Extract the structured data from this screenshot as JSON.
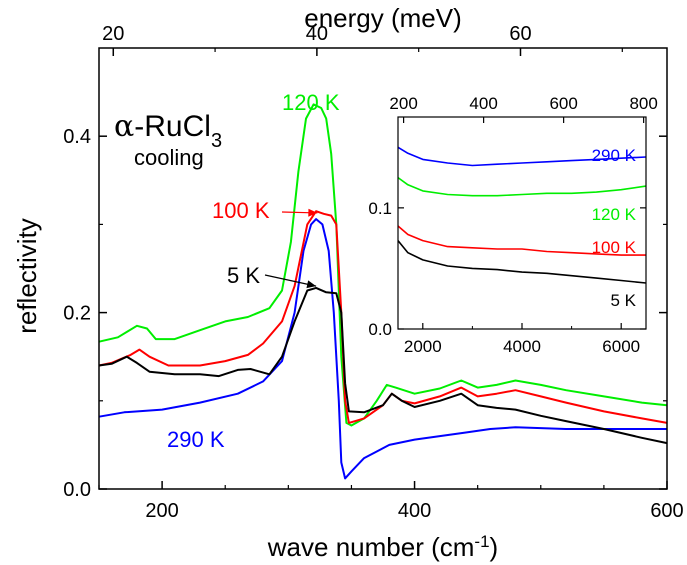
{
  "chart_data": [
    {
      "type": "line",
      "title": "",
      "annotations": [
        "α-RuCl3",
        "cooling"
      ],
      "x_axis": {
        "label": "wave number (cm-1)",
        "range": [
          150,
          600
        ],
        "ticks": [
          200,
          400,
          600
        ]
      },
      "top_axis": {
        "label": "energy (meV)",
        "ticks": [
          20,
          40,
          60
        ]
      },
      "y_axis": {
        "label": "reflectivity",
        "range": [
          0,
          0.5
        ],
        "ticks": [
          0.0,
          0.2,
          0.4
        ],
        "tick_labels": [
          "0.0",
          "0.2",
          "0.4"
        ]
      },
      "grid": false,
      "series": [
        {
          "name": "290 K",
          "color": "#0000ff",
          "points": [
            [
              150,
              0.082
            ],
            [
              170,
              0.087
            ],
            [
              200,
              0.09
            ],
            [
              230,
              0.098
            ],
            [
              260,
              0.108
            ],
            [
              280,
              0.122
            ],
            [
              295,
              0.145
            ],
            [
              305,
              0.2
            ],
            [
              312,
              0.27
            ],
            [
              318,
              0.3
            ],
            [
              322,
              0.306
            ],
            [
              327,
              0.3
            ],
            [
              332,
              0.27
            ],
            [
              336,
              0.2
            ],
            [
              340,
              0.1
            ],
            [
              342,
              0.03
            ],
            [
              345,
              0.012
            ],
            [
              350,
              0.02
            ],
            [
              360,
              0.035
            ],
            [
              380,
              0.05
            ],
            [
              400,
              0.056
            ],
            [
              420,
              0.06
            ],
            [
              440,
              0.064
            ],
            [
              460,
              0.068
            ],
            [
              480,
              0.07
            ],
            [
              500,
              0.069
            ],
            [
              520,
              0.068
            ],
            [
              550,
              0.068
            ],
            [
              580,
              0.068
            ],
            [
              600,
              0.068
            ]
          ]
        },
        {
          "name": "120 K",
          "color": "#00ee00",
          "points": [
            [
              150,
              0.167
            ],
            [
              165,
              0.172
            ],
            [
              180,
              0.185
            ],
            [
              188,
              0.182
            ],
            [
              195,
              0.17
            ],
            [
              210,
              0.17
            ],
            [
              230,
              0.18
            ],
            [
              250,
              0.19
            ],
            [
              268,
              0.195
            ],
            [
              285,
              0.205
            ],
            [
              295,
              0.225
            ],
            [
              302,
              0.28
            ],
            [
              308,
              0.36
            ],
            [
              314,
              0.42
            ],
            [
              320,
              0.436
            ],
            [
              326,
              0.432
            ],
            [
              330,
              0.42
            ],
            [
              334,
              0.38
            ],
            [
              338,
              0.3
            ],
            [
              342,
              0.15
            ],
            [
              346,
              0.075
            ],
            [
              350,
              0.072
            ],
            [
              360,
              0.08
            ],
            [
              370,
              0.1
            ],
            [
              378,
              0.118
            ],
            [
              385,
              0.115
            ],
            [
              400,
              0.108
            ],
            [
              420,
              0.114
            ],
            [
              437,
              0.123
            ],
            [
              450,
              0.115
            ],
            [
              465,
              0.118
            ],
            [
              480,
              0.123
            ],
            [
              500,
              0.118
            ],
            [
              520,
              0.112
            ],
            [
              550,
              0.105
            ],
            [
              580,
              0.098
            ],
            [
              600,
              0.095
            ]
          ]
        },
        {
          "name": "100 K",
          "color": "#ff0000",
          "points": [
            [
              150,
              0.14
            ],
            [
              160,
              0.143
            ],
            [
              175,
              0.152
            ],
            [
              182,
              0.158
            ],
            [
              190,
              0.15
            ],
            [
              205,
              0.14
            ],
            [
              230,
              0.14
            ],
            [
              250,
              0.145
            ],
            [
              268,
              0.152
            ],
            [
              280,
              0.165
            ],
            [
              295,
              0.19
            ],
            [
              305,
              0.23
            ],
            [
              315,
              0.3
            ],
            [
              322,
              0.315
            ],
            [
              328,
              0.312
            ],
            [
              334,
              0.31
            ],
            [
              338,
              0.3
            ],
            [
              342,
              0.2
            ],
            [
              345,
              0.1
            ],
            [
              348,
              0.075
            ],
            [
              360,
              0.08
            ],
            [
              375,
              0.095
            ],
            [
              382,
              0.108
            ],
            [
              390,
              0.1
            ],
            [
              400,
              0.097
            ],
            [
              420,
              0.105
            ],
            [
              437,
              0.115
            ],
            [
              450,
              0.105
            ],
            [
              465,
              0.108
            ],
            [
              480,
              0.112
            ],
            [
              500,
              0.105
            ],
            [
              520,
              0.098
            ],
            [
              550,
              0.088
            ],
            [
              580,
              0.08
            ],
            [
              600,
              0.075
            ]
          ]
        },
        {
          "name": "5 K",
          "color": "#000000",
          "points": [
            [
              150,
              0.14
            ],
            [
              160,
              0.142
            ],
            [
              172,
              0.15
            ],
            [
              180,
              0.143
            ],
            [
              190,
              0.133
            ],
            [
              210,
              0.13
            ],
            [
              230,
              0.13
            ],
            [
              245,
              0.128
            ],
            [
              260,
              0.135
            ],
            [
              270,
              0.136
            ],
            [
              285,
              0.13
            ],
            [
              295,
              0.15
            ],
            [
              305,
              0.19
            ],
            [
              315,
              0.225
            ],
            [
              322,
              0.228
            ],
            [
              330,
              0.223
            ],
            [
              338,
              0.222
            ],
            [
              342,
              0.2
            ],
            [
              345,
              0.12
            ],
            [
              348,
              0.088
            ],
            [
              360,
              0.087
            ],
            [
              375,
              0.095
            ],
            [
              382,
              0.108
            ],
            [
              390,
              0.1
            ],
            [
              400,
              0.093
            ],
            [
              420,
              0.1
            ],
            [
              437,
              0.108
            ],
            [
              450,
              0.095
            ],
            [
              465,
              0.092
            ],
            [
              480,
              0.09
            ],
            [
              500,
              0.083
            ],
            [
              520,
              0.077
            ],
            [
              550,
              0.068
            ],
            [
              580,
              0.058
            ],
            [
              600,
              0.052
            ]
          ]
        }
      ]
    },
    {
      "type": "line",
      "name": "inset",
      "x_axis": {
        "range": [
          1500,
          6500
        ],
        "ticks": [
          2000,
          4000,
          6000
        ]
      },
      "top_axis": {
        "ticks": [
          200,
          400,
          600,
          800
        ]
      },
      "y_axis": {
        "range": [
          0,
          0.175
        ],
        "ticks": [
          0.0,
          0.1
        ],
        "tick_labels": [
          "0.0",
          "0.1"
        ]
      },
      "series": [
        {
          "name": "290 K",
          "color": "#0000ff",
          "points": [
            [
              1500,
              0.15
            ],
            [
              1700,
              0.145
            ],
            [
              2000,
              0.14
            ],
            [
              2500,
              0.137
            ],
            [
              3000,
              0.135
            ],
            [
              3500,
              0.136
            ],
            [
              4000,
              0.137
            ],
            [
              4500,
              0.138
            ],
            [
              5000,
              0.139
            ],
            [
              5500,
              0.14
            ],
            [
              6000,
              0.141
            ],
            [
              6500,
              0.142
            ]
          ]
        },
        {
          "name": "120 K",
          "color": "#00ee00",
          "points": [
            [
              1500,
              0.125
            ],
            [
              1700,
              0.119
            ],
            [
              2000,
              0.114
            ],
            [
              2500,
              0.111
            ],
            [
              3000,
              0.11
            ],
            [
              3500,
              0.11
            ],
            [
              4000,
              0.111
            ],
            [
              4500,
              0.112
            ],
            [
              5000,
              0.112
            ],
            [
              5500,
              0.113
            ],
            [
              6000,
              0.115
            ],
            [
              6500,
              0.118
            ]
          ]
        },
        {
          "name": "100 K",
          "color": "#ff0000",
          "points": [
            [
              1500,
              0.085
            ],
            [
              1700,
              0.078
            ],
            [
              2000,
              0.073
            ],
            [
              2500,
              0.068
            ],
            [
              3000,
              0.067
            ],
            [
              3500,
              0.066
            ],
            [
              4000,
              0.066
            ],
            [
              4500,
              0.064
            ],
            [
              5000,
              0.063
            ],
            [
              5500,
              0.062
            ],
            [
              6000,
              0.061
            ],
            [
              6500,
              0.061
            ]
          ]
        },
        {
          "name": "5 K",
          "color": "#000000",
          "points": [
            [
              1500,
              0.073
            ],
            [
              1700,
              0.063
            ],
            [
              2000,
              0.057
            ],
            [
              2500,
              0.052
            ],
            [
              3000,
              0.05
            ],
            [
              3500,
              0.049
            ],
            [
              4000,
              0.047
            ],
            [
              4500,
              0.046
            ],
            [
              5000,
              0.044
            ],
            [
              5500,
              0.042
            ],
            [
              6000,
              0.04
            ],
            [
              6500,
              0.038
            ]
          ]
        }
      ]
    }
  ],
  "labels": {
    "top_title": "energy (meV)",
    "y_title": "reflectivity",
    "x_title_main": "wave number (cm",
    "x_title_sup": "-1",
    "x_title_close": ")",
    "sample_alpha": "α",
    "sample_rest": "-RuCl",
    "sample_sub": "3",
    "cooling": "cooling"
  }
}
